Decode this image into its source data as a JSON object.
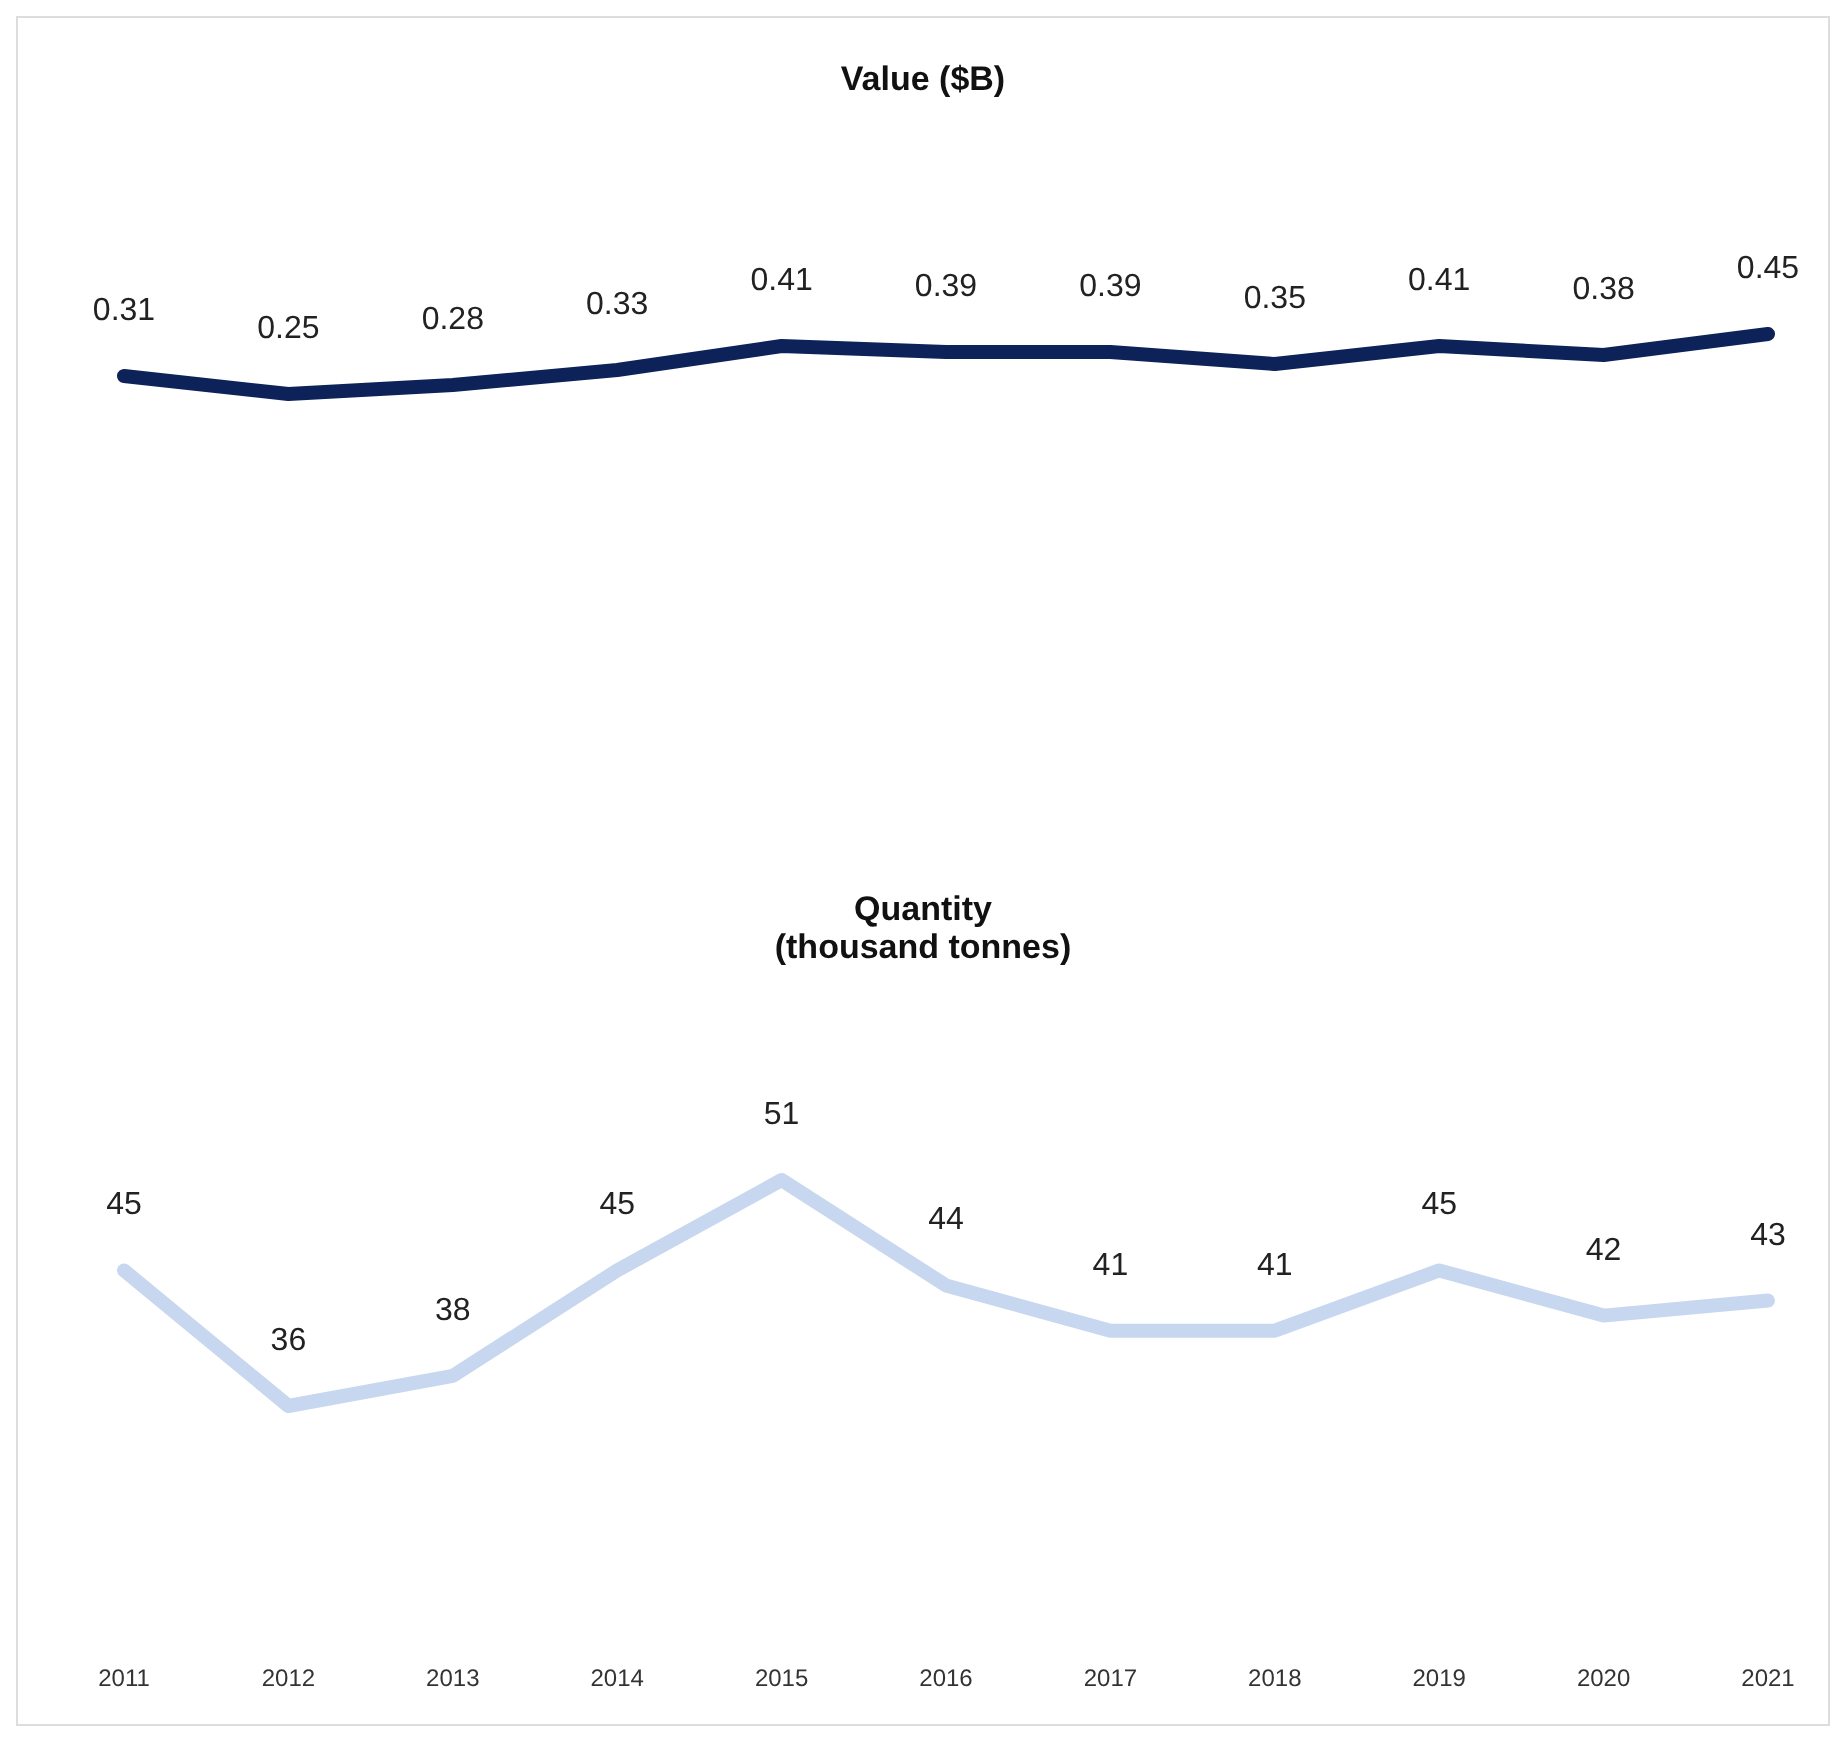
{
  "chart_data": [
    {
      "type": "line",
      "title": "Value ($B)",
      "categories": [
        null,
        null,
        null,
        null,
        null,
        null,
        null,
        null,
        null,
        null,
        null
      ],
      "series": [
        {
          "color": "#0d2259",
          "values": [
            0.31,
            0.25,
            0.28,
            0.33,
            0.41,
            0.39,
            0.39,
            0.35,
            0.41,
            0.38,
            0.45
          ]
        }
      ],
      "data_labels": true
    },
    {
      "type": "line",
      "title": "Quantity\n(thousand tonnes)",
      "categories": [
        "2011",
        "2012",
        "2013",
        "2014",
        "2015",
        "2016",
        "2017",
        "2018",
        "2019",
        "2020",
        "2021"
      ],
      "series": [
        {
          "color": "#c6d7ef",
          "values": [
            45,
            36,
            38,
            45,
            51,
            44,
            41,
            41,
            45,
            42,
            43
          ]
        }
      ],
      "data_labels": true
    }
  ]
}
